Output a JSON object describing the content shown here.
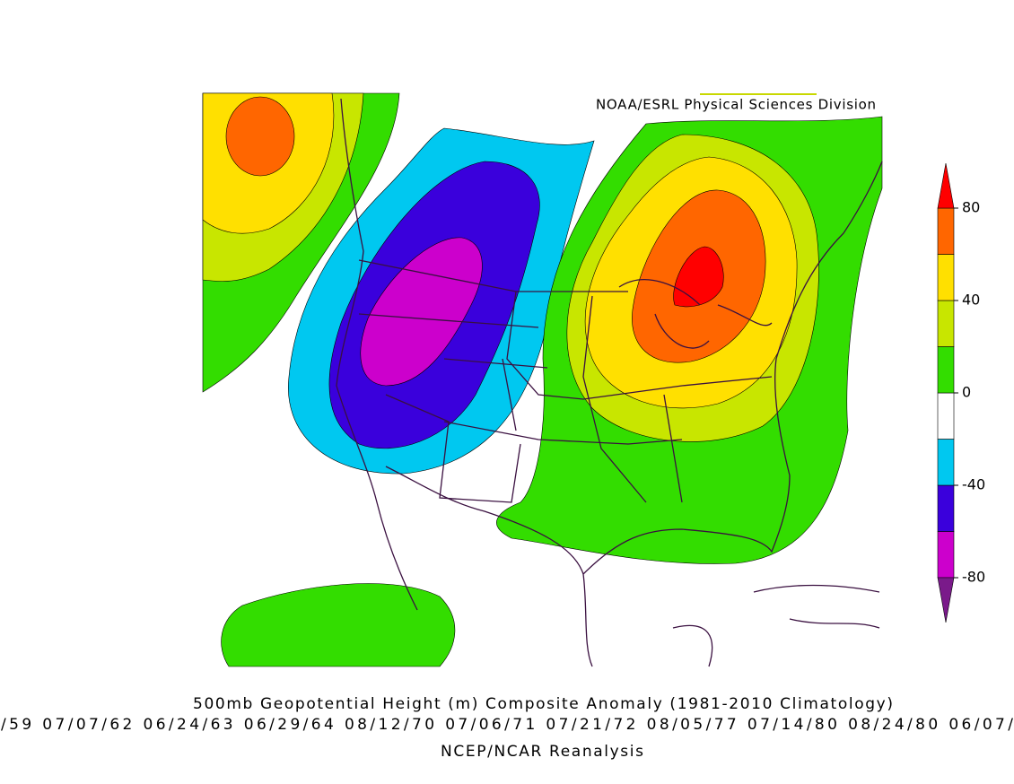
{
  "credit": "NOAA/ESRL Physical Sciences Division",
  "title": "500mb Geopotential Height (m) Composite Anomaly (1981-2010 Climatology)",
  "dates": "/59 07/07/62 06/24/63 06/29/64 08/12/70 07/06/71 07/21/72 08/05/77 07/14/80 08/24/80 06/07/",
  "source": "NCEP/NCAR Reanalysis",
  "colorbar": {
    "bounds": [
      -80,
      -60,
      -40,
      -20,
      0,
      20,
      40,
      60,
      80
    ],
    "colors": [
      "#cc00cc",
      "#3a00dc",
      "#00c8f0",
      "#ffffff",
      "#33dd00",
      "#c8e600",
      "#ffe000",
      "#ff6600"
    ],
    "under_color": "#7a1a8a",
    "over_color": "#ff0000",
    "ticks": [
      -80,
      -40,
      0,
      40,
      80
    ]
  }
}
